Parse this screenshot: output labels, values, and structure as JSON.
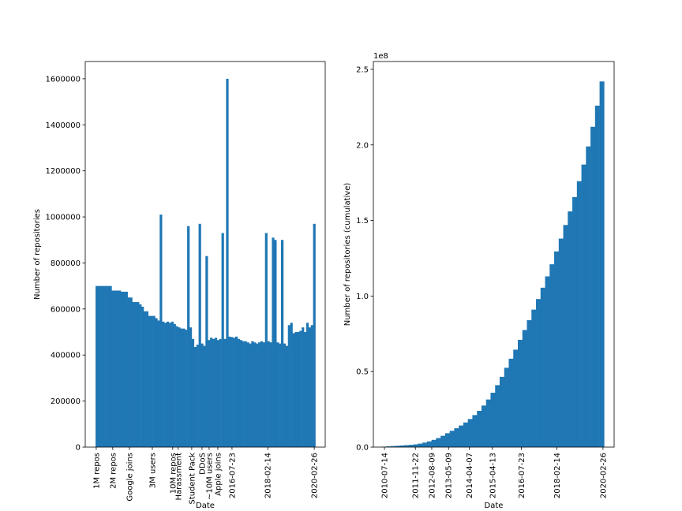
{
  "chart_data": [
    {
      "type": "histogram",
      "xlabel": "Date",
      "ylabel": "Number of repositories",
      "color": "#1f77b4",
      "bins": [
        2010.6,
        2010.7,
        2010.8,
        2010.9,
        2011.0,
        2011.1,
        2011.2,
        2011.3,
        2011.4,
        2011.5,
        2011.6,
        2011.7,
        2011.8,
        2011.9,
        2012.0,
        2012.1,
        2012.2,
        2012.3,
        2012.4,
        2012.5,
        2012.6,
        2012.7,
        2012.8,
        2012.9,
        2013.0,
        2013.1,
        2013.2,
        2013.3,
        2013.4,
        2013.5,
        2013.6,
        2013.7,
        2013.8,
        2013.9,
        2014.0,
        2014.1,
        2014.2,
        2014.3,
        2014.4,
        2014.5,
        2014.6,
        2014.7,
        2014.8,
        2014.9,
        2015.0,
        2015.1,
        2015.2,
        2015.3,
        2015.4,
        2015.5,
        2015.6,
        2015.7,
        2015.8,
        2015.9,
        2016.0,
        2016.1,
        2016.2,
        2016.3,
        2016.4,
        2016.5,
        2016.6,
        2016.7,
        2016.8,
        2016.9,
        2017.0,
        2017.1,
        2017.2,
        2017.3,
        2017.4,
        2017.5,
        2017.6,
        2017.7,
        2017.8,
        2017.9,
        2018.0,
        2018.1,
        2018.2,
        2018.3,
        2018.4,
        2018.5,
        2018.6,
        2018.7,
        2018.8,
        2018.9,
        2019.0,
        2019.1,
        2019.2,
        2019.3,
        2019.4,
        2019.5,
        2019.6,
        2019.7,
        2019.8,
        2019.9,
        2020.0,
        2020.1,
        2020.2
      ],
      "counts": [
        700000,
        700000,
        700000,
        700000,
        700000,
        700000,
        700000,
        680000,
        680000,
        680000,
        680000,
        675000,
        675000,
        675000,
        650000,
        650000,
        630000,
        630000,
        630000,
        620000,
        610000,
        590000,
        590000,
        570000,
        570000,
        570000,
        560000,
        550000,
        1010000,
        545000,
        540000,
        545000,
        540000,
        545000,
        535000,
        525000,
        520000,
        515000,
        515000,
        510000,
        960000,
        520000,
        470000,
        435000,
        445000,
        970000,
        450000,
        440000,
        830000,
        465000,
        475000,
        470000,
        475000,
        465000,
        470000,
        930000,
        470000,
        1600000,
        480000,
        478000,
        475000,
        480000,
        470000,
        465000,
        460000,
        460000,
        455000,
        450000,
        460000,
        455000,
        450000,
        455000,
        460000,
        455000,
        930000,
        460000,
        455000,
        910000,
        900000,
        455000,
        450000,
        900000,
        450000,
        440000,
        530000,
        540000,
        495000,
        500000,
        500000,
        505000,
        520000,
        500000,
        540000,
        520000,
        530000,
        970000
      ],
      "xlim": [
        2010.15,
        2020.63
      ],
      "ylim": [
        0,
        1675000
      ],
      "yticks": [
        0,
        200000,
        400000,
        600000,
        800000,
        1000000,
        1200000,
        1400000,
        1600000
      ],
      "xticks": [
        {
          "value": 2010.63,
          "label": "1M repos"
        },
        {
          "value": 2011.35,
          "label": "2M repos"
        },
        {
          "value": 2012.08,
          "label": "Google joins"
        },
        {
          "value": 2013.08,
          "label": "3M users"
        },
        {
          "value": 2013.97,
          "label": "10M repos"
        },
        {
          "value": 2014.21,
          "label": "Harassment"
        },
        {
          "value": 2014.8,
          "label": "Student Pack"
        },
        {
          "value": 2015.25,
          "label": "DDoS"
        },
        {
          "value": 2015.56,
          "label": "~10M users"
        },
        {
          "value": 2015.94,
          "label": "Apple joins"
        },
        {
          "value": 2016.56,
          "label": "2016-07-23"
        },
        {
          "value": 2018.12,
          "label": "2018-02-14"
        },
        {
          "value": 2020.15,
          "label": "2020-02-26"
        }
      ]
    },
    {
      "type": "histogram",
      "xlabel": "Date",
      "ylabel": "Number of repositories (cumulative)",
      "color": "#1f77b4",
      "offset_text": "1e8",
      "bins": [
        2010.4,
        2010.6,
        2010.8,
        2011.0,
        2011.2,
        2011.4,
        2011.6,
        2011.8,
        2012.0,
        2012.2,
        2012.4,
        2012.6,
        2012.8,
        2013.0,
        2013.2,
        2013.4,
        2013.6,
        2013.8,
        2014.0,
        2014.2,
        2014.4,
        2014.6,
        2014.8,
        2015.0,
        2015.2,
        2015.4,
        2015.6,
        2015.8,
        2016.0,
        2016.2,
        2016.4,
        2016.6,
        2016.8,
        2017.0,
        2017.2,
        2017.4,
        2017.6,
        2017.8,
        2018.0,
        2018.2,
        2018.4,
        2018.6,
        2018.8,
        2019.0,
        2019.2,
        2019.4,
        2019.6,
        2019.8,
        2020.0,
        2020.2
      ],
      "counts": [
        300000,
        500000,
        700000,
        900000,
        1100000,
        1300000,
        1500000,
        1800000,
        2300000,
        3000000,
        3800000,
        4800000,
        6000000,
        7500000,
        9200000,
        10800000,
        12500000,
        14300000,
        16300000,
        18600000,
        21200000,
        24000000,
        27500000,
        31500000,
        36000000,
        41000000,
        46500000,
        52500000,
        58500000,
        64500000,
        71000000,
        77500000,
        84000000,
        91000000,
        98000000,
        105500000,
        113000000,
        121000000,
        129500000,
        138000000,
        147000000,
        156000000,
        165500000,
        176000000,
        187000000,
        199000000,
        212000000,
        226000000,
        242000000
      ],
      "xlim": [
        2010.04,
        2020.64
      ],
      "ylim": [
        0,
        255200000
      ],
      "yticks": [
        {
          "value": 0,
          "label": "0.0"
        },
        {
          "value": 50000000,
          "label": "0.5"
        },
        {
          "value": 100000000,
          "label": "1.0"
        },
        {
          "value": 150000000,
          "label": "1.5"
        },
        {
          "value": 200000000,
          "label": "2.0"
        },
        {
          "value": 250000000,
          "label": "2.5"
        }
      ],
      "xticks": [
        {
          "value": 2010.53,
          "label": "2010-07-14"
        },
        {
          "value": 2011.89,
          "label": "2011-11-22"
        },
        {
          "value": 2012.61,
          "label": "2012-08-09"
        },
        {
          "value": 2013.35,
          "label": "2013-05-09"
        },
        {
          "value": 2014.27,
          "label": "2014-04-07"
        },
        {
          "value": 2015.28,
          "label": "2015-04-13"
        },
        {
          "value": 2016.56,
          "label": "2016-07-23"
        },
        {
          "value": 2018.12,
          "label": "2018-02-14"
        },
        {
          "value": 2020.15,
          "label": "2020-02-26"
        }
      ]
    }
  ]
}
